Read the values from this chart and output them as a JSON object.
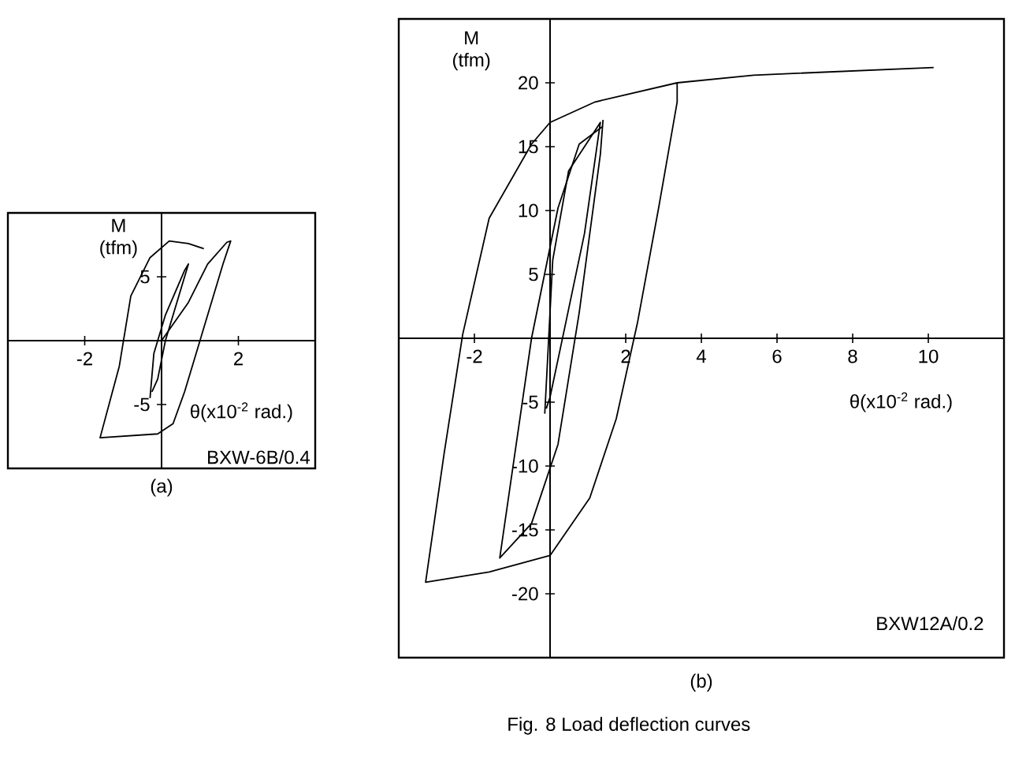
{
  "chart_data": [
    {
      "type": "line",
      "title": "(a)",
      "xlabel": "θ(x10$^{-2}$ rad.)",
      "ylabel": "M (tfm)",
      "annotations": [
        "BXW-6B/0.4"
      ],
      "xlim": [
        -4,
        4
      ],
      "ylim": [
        -10,
        10
      ],
      "xticks": [
        -2,
        2
      ],
      "yticks": [
        -5,
        5
      ],
      "series": [
        {
          "color": "#000000",
          "x": [
            0,
            0.7,
            1.2,
            1.7,
            1.8,
            1.6,
            1.2,
            0.9,
            0.6,
            0.3,
            -0.1,
            -1.6,
            -1.1,
            -0.8,
            -0.3,
            0.2,
            0.7,
            1.1
          ],
          "values": [
            0,
            3,
            6,
            7.7,
            7.8,
            6,
            2,
            -1,
            -4,
            -6.5,
            -7.3,
            -7.6,
            -2,
            3.5,
            6.5,
            7.8,
            7.6,
            7.2
          ]
        },
        {
          "color": "#000000",
          "x": [
            -0.3,
            -0.2,
            0.1,
            0.6,
            0.7,
            0.4,
            0.1,
            -0.1,
            -0.25
          ],
          "values": [
            -4.5,
            -1,
            2,
            5.5,
            6,
            3,
            0,
            -3,
            -4
          ]
        }
      ]
    },
    {
      "type": "line",
      "title": "(b)",
      "xlabel": "θ(x10$^{-2}$ rad.)",
      "ylabel": "M (tfm)",
      "annotations": [
        "BXW12A/0.2",
        "Fig. 8  Load deflection curves"
      ],
      "xlim": [
        -4,
        12
      ],
      "ylim": [
        -25,
        25
      ],
      "xticks": [
        -2,
        2,
        4,
        6,
        8,
        10
      ],
      "yticks": [
        -20,
        -15,
        -10,
        -5,
        5,
        10,
        15,
        20
      ],
      "series": [
        {
          "color": "#000000",
          "x": [
            3.36,
            3.36,
            2.87,
            2.31,
            1.75,
            1.05,
            0,
            -1.61,
            -3.29,
            -2.8,
            -2.31,
            -1.61,
            -0.49,
            0,
            1.19,
            3.36,
            5.38,
            10.14
          ],
          "values": [
            20,
            18.5,
            10.2,
            1.2,
            -6.3,
            -12.5,
            -17,
            -18.3,
            -19.1,
            -9,
            0.3,
            9.4,
            15.2,
            16.9,
            18.5,
            20,
            20.6,
            21.2
          ]
        },
        {
          "color": "#000000",
          "x": [
            1.4,
            1.33,
            0.77,
            0.21,
            -0.49,
            -1.33,
            -0.49,
            0.21,
            0.77,
            1.4
          ],
          "values": [
            17.1,
            14.4,
            2,
            -8.3,
            -14.5,
            -17.2,
            0,
            10.2,
            15.2,
            16.6
          ]
        },
        {
          "color": "#000000",
          "x": [
            -0.14,
            0.07,
            0.49,
            1.33,
            0.91,
            0.35,
            0,
            -0.1
          ],
          "values": [
            -5.9,
            6.1,
            13.1,
            16.9,
            8.2,
            0.3,
            -4.6,
            -5.5
          ]
        }
      ]
    }
  ]
}
